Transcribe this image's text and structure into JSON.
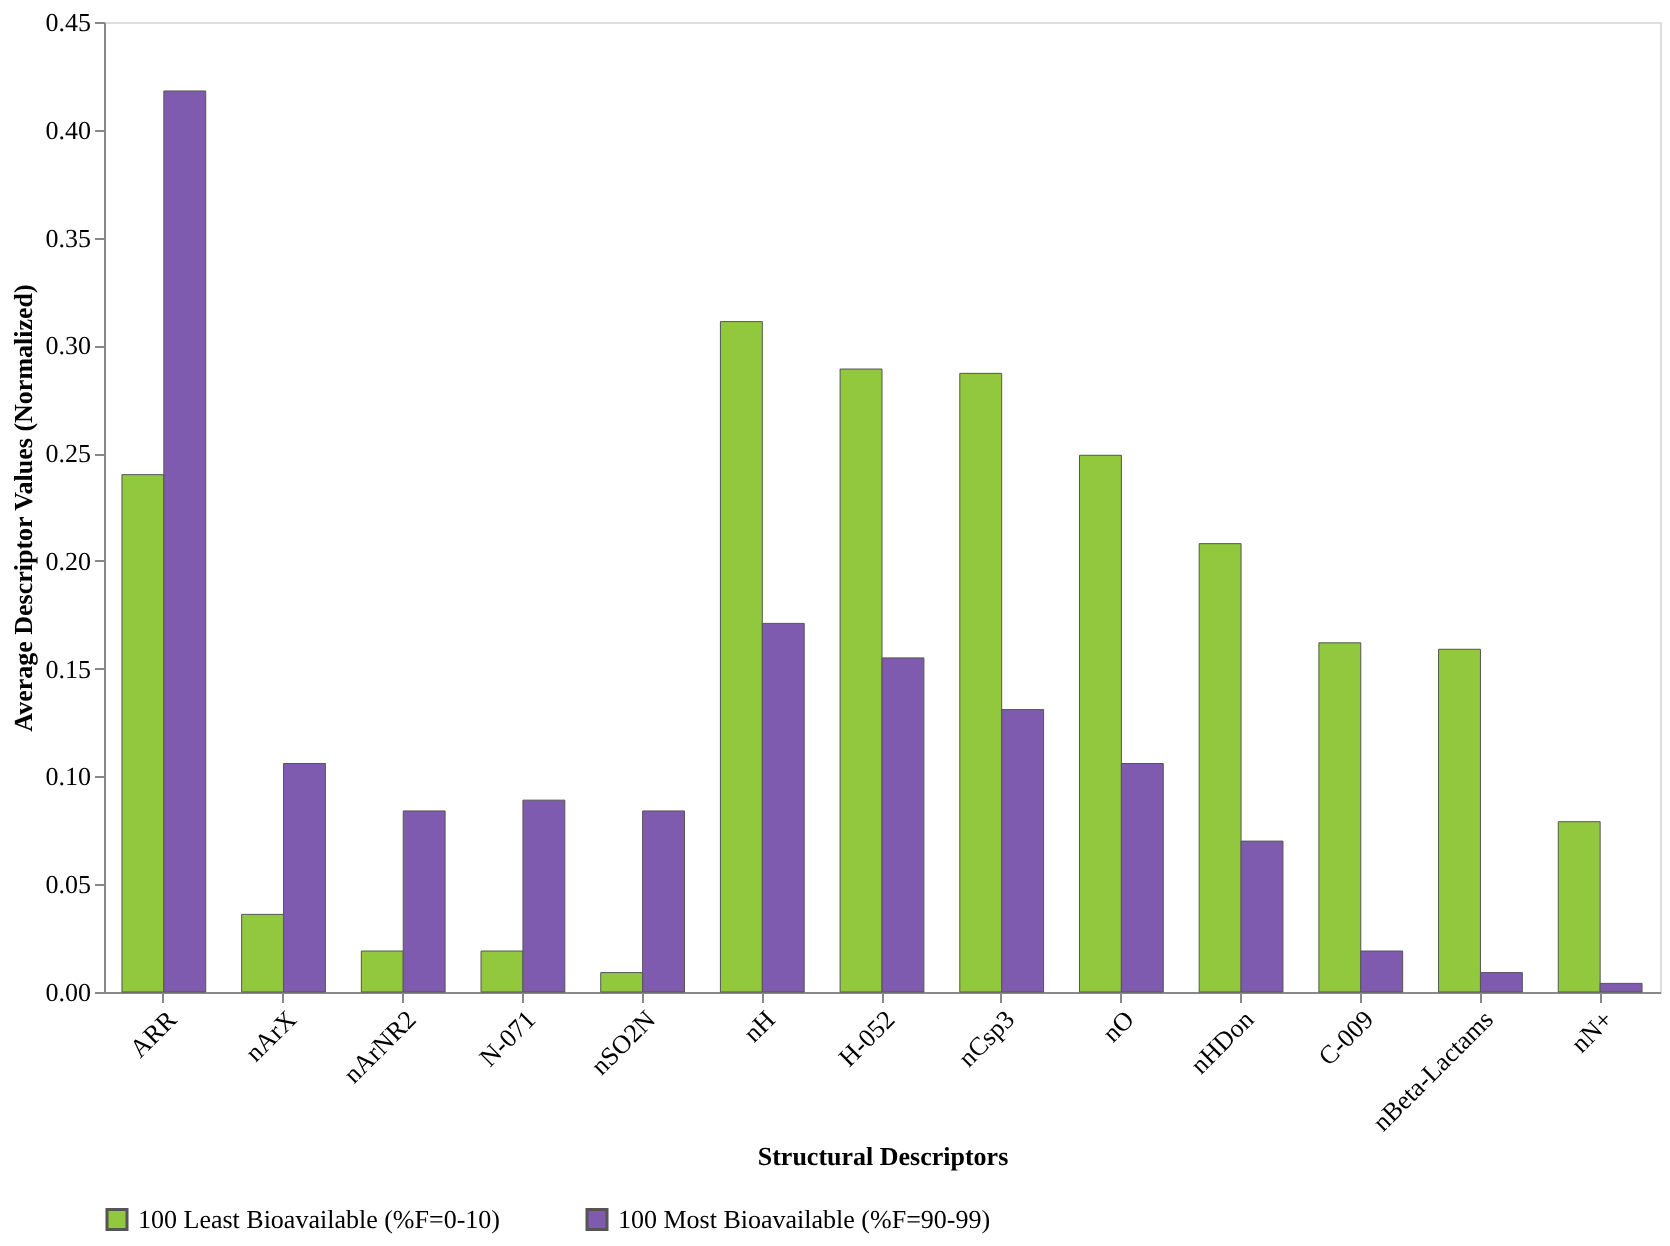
{
  "chart_data": {
    "type": "bar",
    "xlabel": "Structural Descriptors",
    "ylabel": "Average Descriptor Values (Normalized)",
    "categories": [
      "ARR",
      "nArX",
      "nArNR2",
      "N-071",
      "nSO2N",
      "nH",
      "H-052",
      "nCsp3",
      "nO",
      "nHDon",
      "C-009",
      "nBeta-Lactams",
      "nN+"
    ],
    "series": [
      {
        "name": "100 Least Bioavailable (%F=0-10)",
        "color": "#92c83e",
        "values": [
          0.24,
          0.036,
          0.019,
          0.019,
          0.009,
          0.311,
          0.289,
          0.287,
          0.249,
          0.208,
          0.162,
          0.159,
          0.079
        ]
      },
      {
        "name": "100 Most Bioavailable (%F=90-99)",
        "color": "#7f5bb0",
        "values": [
          0.418,
          0.106,
          0.084,
          0.089,
          0.084,
          0.171,
          0.155,
          0.131,
          0.106,
          0.07,
          0.019,
          0.009,
          0.004
        ]
      }
    ],
    "ylim": [
      0,
      0.45
    ],
    "yticks": [
      {
        "value": 0,
        "label": "0.00"
      },
      {
        "value": 0.05,
        "label": "0.05"
      },
      {
        "value": 0.1,
        "label": "0.10"
      },
      {
        "value": 0.15,
        "label": "0.15"
      },
      {
        "value": 0.2,
        "label": "0.20"
      },
      {
        "value": 0.25,
        "label": "0.25"
      },
      {
        "value": 0.3,
        "label": "0.30"
      },
      {
        "value": 0.35,
        "label": "0.35"
      },
      {
        "value": 0.4,
        "label": "0.40"
      },
      {
        "value": 0.45,
        "label": "0.45"
      }
    ],
    "grid": false,
    "legend": "bottom"
  }
}
